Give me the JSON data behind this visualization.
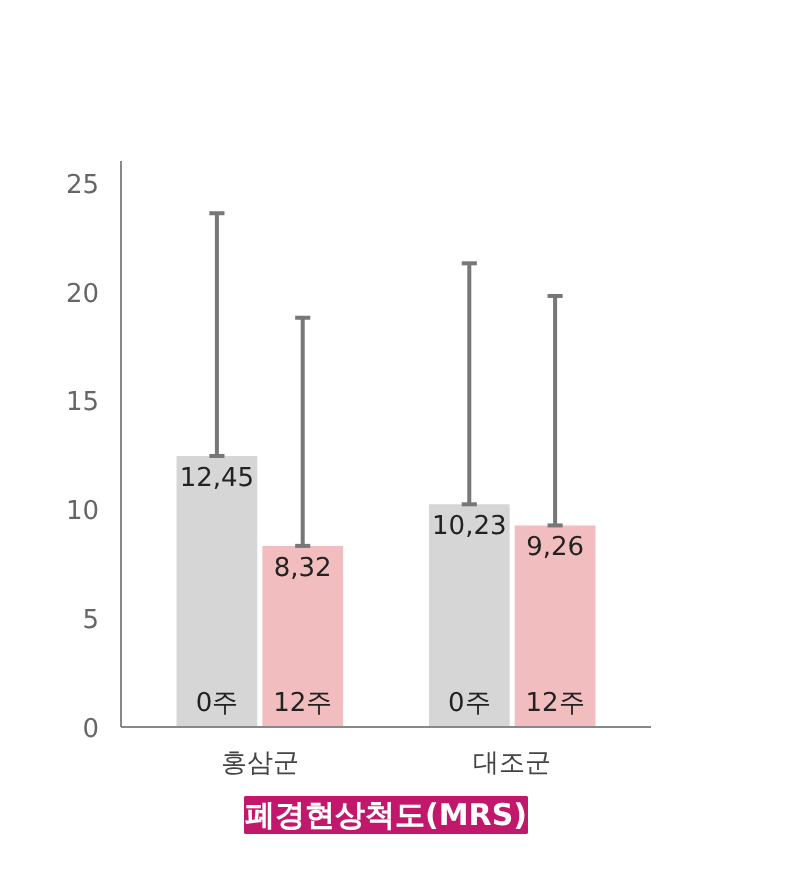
{
  "chart_data": {
    "type": "bar",
    "title": "폐경현상척도(MRS)",
    "categories": [
      "홍삼군",
      "대조군"
    ],
    "series": [
      {
        "name": "0주",
        "color": "#d6d6d6",
        "values": [
          12.45,
          10.23
        ],
        "value_labels": [
          "12,45",
          "10,23"
        ],
        "errors": [
          [
            12.45,
            23.6
          ],
          [
            10.23,
            21.3
          ]
        ]
      },
      {
        "name": "12주",
        "color": "#f2bdbf",
        "values": [
          8.32,
          9.26
        ],
        "value_labels": [
          "8,32",
          "9,26"
        ],
        "errors": [
          [
            8.32,
            18.8
          ],
          [
            9.26,
            19.8
          ]
        ]
      }
    ],
    "ylim": [
      0,
      26
    ],
    "yticks": [
      0,
      5,
      10,
      15,
      20,
      25
    ],
    "grid": false
  }
}
